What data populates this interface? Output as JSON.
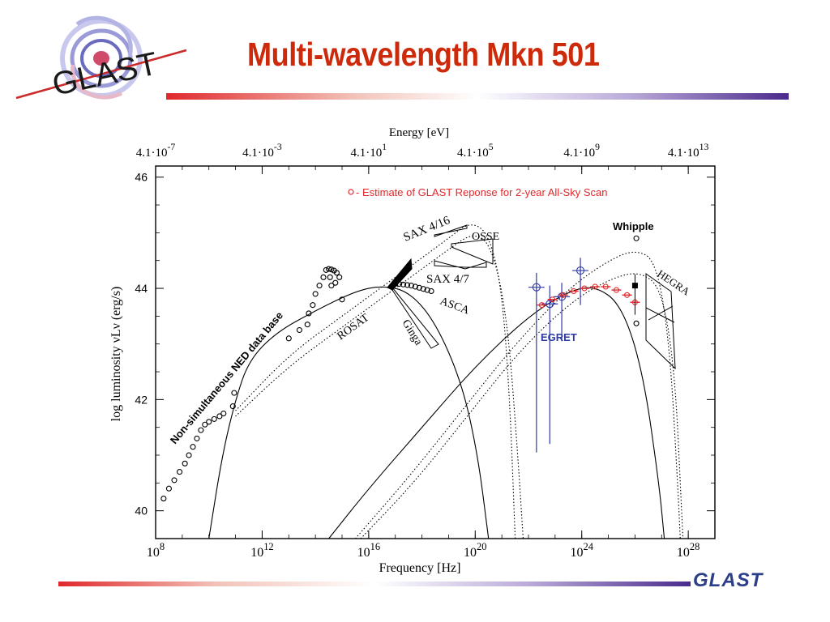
{
  "slide": {
    "title": "Multi-wavelength Mkn 501",
    "title_color": "#cc2a0a",
    "logo_text": "GLAST",
    "footer_logo_text": "GLAST",
    "accent_red": "#e0282b",
    "accent_purple": "#4a2a8c"
  },
  "chart_data": {
    "type": "scatter",
    "title": "",
    "xlabel": "Frequency [Hz]",
    "ylabel": "log luminosity νLν (erg/s)",
    "top_axis_label": "Energy [eV]",
    "x_scale": "log",
    "xlim": [
      100000000.0,
      1e+29
    ],
    "ylim": [
      39.5,
      46.2
    ],
    "bottom_ticks": [
      {
        "base": "10",
        "exp": "8",
        "value": 100000000.0
      },
      {
        "base": "10",
        "exp": "12",
        "value": 1000000000000.0
      },
      {
        "base": "10",
        "exp": "16",
        "value": 1e+16
      },
      {
        "base": "10",
        "exp": "20",
        "value": 1e+20
      },
      {
        "base": "10",
        "exp": "24",
        "value": 1e+24
      },
      {
        "base": "10",
        "exp": "28",
        "value": 1e+28
      }
    ],
    "top_ticks": [
      {
        "base": "4.1·10",
        "exp": "-7",
        "value": 100000000.0
      },
      {
        "base": "4.1·10",
        "exp": "-3",
        "value": 1000000000000.0
      },
      {
        "base": "4.1·10",
        "exp": "1",
        "value": 1e+16
      },
      {
        "base": "4.1·10",
        "exp": "5",
        "value": 1e+20
      },
      {
        "base": "4.1·10",
        "exp": "9",
        "value": 1e+24
      },
      {
        "base": "4.1·10",
        "exp": "13",
        "value": 1e+28
      }
    ],
    "y_ticks": [
      "40",
      "42",
      "44",
      "46"
    ],
    "legend_text": "- Estimate of GLAST Reponse for 2-year All-Sky Scan",
    "legend_position": "top-right",
    "series": [
      {
        "name": "Non-simultaneous NED data base",
        "color": "#000000",
        "points": [
          {
            "x": 8.3,
            "y": 40.22
          },
          {
            "x": 8.5,
            "y": 40.4
          },
          {
            "x": 8.7,
            "y": 40.55
          },
          {
            "x": 8.9,
            "y": 40.7
          },
          {
            "x": 9.1,
            "y": 40.85
          },
          {
            "x": 9.25,
            "y": 41.0
          },
          {
            "x": 9.4,
            "y": 41.15
          },
          {
            "x": 9.55,
            "y": 41.3
          },
          {
            "x": 9.7,
            "y": 41.45
          },
          {
            "x": 9.85,
            "y": 41.55
          },
          {
            "x": 10.0,
            "y": 41.6
          },
          {
            "x": 10.2,
            "y": 41.65
          },
          {
            "x": 10.4,
            "y": 41.7
          },
          {
            "x": 10.55,
            "y": 41.75
          },
          {
            "x": 10.9,
            "y": 41.88
          },
          {
            "x": 10.95,
            "y": 42.12
          },
          {
            "x": 13.0,
            "y": 43.1
          },
          {
            "x": 13.4,
            "y": 43.25
          },
          {
            "x": 13.7,
            "y": 43.35
          },
          {
            "x": 13.75,
            "y": 43.55
          },
          {
            "x": 13.9,
            "y": 43.7
          },
          {
            "x": 14.0,
            "y": 43.9
          },
          {
            "x": 14.15,
            "y": 44.05
          },
          {
            "x": 14.3,
            "y": 44.2
          },
          {
            "x": 14.4,
            "y": 44.33
          },
          {
            "x": 14.5,
            "y": 44.35
          },
          {
            "x": 14.6,
            "y": 44.34
          },
          {
            "x": 14.7,
            "y": 44.32
          },
          {
            "x": 14.8,
            "y": 44.28
          },
          {
            "x": 14.55,
            "y": 44.2
          },
          {
            "x": 14.75,
            "y": 44.1
          },
          {
            "x": 14.9,
            "y": 44.2
          },
          {
            "x": 14.6,
            "y": 44.05
          },
          {
            "x": 15.0,
            "y": 43.8
          }
        ]
      },
      {
        "name": "ASCA",
        "color": "#000000",
        "points": [
          {
            "x": 17.0,
            "y": 44.08
          },
          {
            "x": 17.15,
            "y": 44.08
          },
          {
            "x": 17.3,
            "y": 44.07
          },
          {
            "x": 17.45,
            "y": 44.06
          },
          {
            "x": 17.6,
            "y": 44.05
          },
          {
            "x": 17.75,
            "y": 44.03
          },
          {
            "x": 17.9,
            "y": 44.01
          },
          {
            "x": 18.05,
            "y": 43.99
          },
          {
            "x": 18.2,
            "y": 43.97
          },
          {
            "x": 18.35,
            "y": 43.95
          }
        ]
      },
      {
        "name": "EGRET",
        "color": "#2e3aa6",
        "points": [
          {
            "x": 22.3,
            "y": 44.02,
            "y_low": 41.05,
            "y_high": 44.28
          },
          {
            "x": 22.8,
            "y": 43.72,
            "y_low": 41.2,
            "y_high": 44.05
          },
          {
            "x": 23.25,
            "y": 43.85,
            "y_low": 43.05,
            "y_high": 44.1
          },
          {
            "x": 23.95,
            "y": 44.32,
            "y_low": 43.7,
            "y_high": 44.55
          }
        ]
      },
      {
        "name": "GLAST estimate",
        "color": "#e0282b",
        "points": [
          {
            "x": 22.5,
            "y": 43.7
          },
          {
            "x": 22.9,
            "y": 43.8
          },
          {
            "x": 23.3,
            "y": 43.88
          },
          {
            "x": 23.7,
            "y": 43.95
          },
          {
            "x": 24.1,
            "y": 44.0
          },
          {
            "x": 24.5,
            "y": 44.03
          },
          {
            "x": 24.9,
            "y": 44.03
          },
          {
            "x": 25.3,
            "y": 43.97
          },
          {
            "x": 25.7,
            "y": 43.88
          },
          {
            "x": 26.0,
            "y": 43.75
          }
        ]
      },
      {
        "name": "Whipple",
        "color": "#000000",
        "points": [
          {
            "x": 26.05,
            "y": 44.9
          },
          {
            "x": 26.0,
            "y": 44.05
          },
          {
            "x": 26.05,
            "y": 43.37
          }
        ]
      }
    ],
    "annotations": [
      {
        "text": "SAX 4/16"
      },
      {
        "text": "OSSE"
      },
      {
        "text": "SAX 4/7"
      },
      {
        "text": "ASCA"
      },
      {
        "text": "ROSAT"
      },
      {
        "text": "Ginga"
      },
      {
        "text": "EGRET"
      },
      {
        "text": "Whipple"
      },
      {
        "text": "HEGRA"
      },
      {
        "text": "Non-simultaneous NED data base"
      }
    ],
    "model_curves": [
      {
        "name": "synchrotron",
        "style": "solid",
        "points": [
          [
            10.0,
            39.5
          ],
          [
            10.5,
            41.0
          ],
          [
            11.0,
            42.0
          ],
          [
            11.5,
            42.7
          ],
          [
            12.5,
            43.2
          ],
          [
            14.0,
            43.6
          ],
          [
            15.5,
            43.95
          ],
          [
            16.5,
            44.05
          ],
          [
            17.5,
            43.95
          ],
          [
            18.5,
            43.4
          ],
          [
            19.5,
            42.3
          ],
          [
            20.1,
            41.0
          ],
          [
            20.5,
            39.5
          ]
        ]
      },
      {
        "name": "inverse-compton",
        "style": "solid",
        "points": [
          [
            14.5,
            39.5
          ],
          [
            16.0,
            40.4
          ],
          [
            18.0,
            41.5
          ],
          [
            20.0,
            42.6
          ],
          [
            22.0,
            43.5
          ],
          [
            23.5,
            43.95
          ],
          [
            24.5,
            44.05
          ],
          [
            25.5,
            43.7
          ],
          [
            26.3,
            42.5
          ],
          [
            26.9,
            40.5
          ],
          [
            27.1,
            39.5
          ]
        ]
      },
      {
        "name": "sync-dotted-1",
        "style": "dotted",
        "points": [
          [
            11.0,
            41.8
          ],
          [
            13.0,
            42.8
          ],
          [
            15.0,
            43.5
          ],
          [
            17.0,
            44.2
          ],
          [
            19.0,
            44.9
          ],
          [
            19.8,
            45.2
          ],
          [
            20.5,
            45.0
          ],
          [
            21.0,
            44.0
          ],
          [
            21.3,
            42.0
          ],
          [
            21.5,
            39.5
          ]
        ]
      },
      {
        "name": "sync-dotted-2",
        "style": "dotted",
        "points": [
          [
            11.0,
            41.7
          ],
          [
            13.0,
            42.6
          ],
          [
            15.0,
            43.3
          ],
          [
            17.0,
            44.0
          ],
          [
            19.0,
            44.7
          ],
          [
            19.9,
            45.0
          ],
          [
            20.6,
            44.8
          ],
          [
            21.2,
            43.5
          ],
          [
            21.6,
            41.0
          ],
          [
            21.8,
            39.5
          ]
        ]
      },
      {
        "name": "ic-dotted-1",
        "style": "dotted",
        "points": [
          [
            15.5,
            39.5
          ],
          [
            17.5,
            40.6
          ],
          [
            19.5,
            41.8
          ],
          [
            21.5,
            43.0
          ],
          [
            23.5,
            44.0
          ],
          [
            25.0,
            44.5
          ],
          [
            26.0,
            44.7
          ],
          [
            26.8,
            44.5
          ],
          [
            27.3,
            43.0
          ],
          [
            27.6,
            40.5
          ],
          [
            27.7,
            39.5
          ]
        ]
      },
      {
        "name": "ic-dotted-2",
        "style": "dotted",
        "points": [
          [
            15.7,
            39.5
          ],
          [
            17.7,
            40.5
          ],
          [
            19.7,
            41.7
          ],
          [
            21.7,
            42.9
          ],
          [
            23.7,
            43.8
          ],
          [
            25.2,
            44.2
          ],
          [
            26.2,
            44.3
          ],
          [
            27.0,
            44.0
          ],
          [
            27.5,
            42.5
          ],
          [
            27.75,
            40.0
          ],
          [
            27.8,
            39.5
          ]
        ]
      }
    ]
  }
}
